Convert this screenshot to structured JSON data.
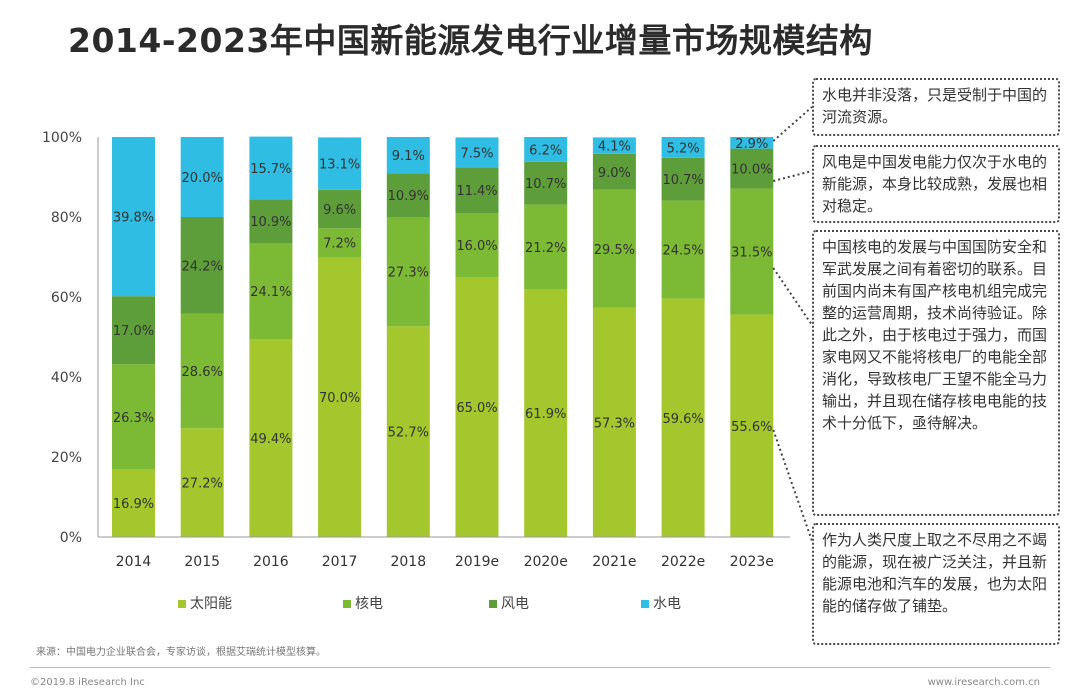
{
  "title": "2014-2023年中国新能源发电行业增量市场规模结构",
  "chart_data": {
    "type": "bar",
    "stacked": true,
    "percent": true,
    "categories": [
      "2014",
      "2015",
      "2016",
      "2017",
      "2018",
      "2019e",
      "2020e",
      "2021e",
      "2022e",
      "2023e"
    ],
    "series": [
      {
        "name": "太阳能",
        "color": "#a3c72d",
        "values": [
          16.9,
          27.2,
          49.4,
          70.0,
          52.7,
          65.0,
          61.9,
          57.3,
          59.6,
          55.6
        ]
      },
      {
        "name": "核电",
        "color": "#7cb935",
        "values": [
          26.3,
          28.6,
          24.1,
          7.2,
          27.3,
          16.0,
          21.2,
          29.5,
          24.5,
          31.5
        ]
      },
      {
        "name": "风电",
        "color": "#5e9e3a",
        "values": [
          17.0,
          24.2,
          10.9,
          9.6,
          10.9,
          11.4,
          10.7,
          9.0,
          10.7,
          10.0
        ]
      },
      {
        "name": "水电",
        "color": "#2fbde3",
        "values": [
          39.8,
          20.0,
          15.7,
          13.1,
          9.1,
          7.5,
          6.2,
          4.1,
          5.2,
          2.9
        ]
      }
    ],
    "y_ticks": [
      "0%",
      "20%",
      "40%",
      "60%",
      "80%",
      "100%"
    ],
    "ylim": [
      0,
      100
    ],
    "legend_position": "bottom",
    "grid": false
  },
  "notes": [
    "水电并非没落，只是受制于中国的河流资源。",
    "风电是中国发电能力仅次于水电的新能源，本身比较成熟，发展也相对稳定。",
    "中国核电的发展与中国国防安全和军武发展之间有着密切的联系。目前国内尚未有国产核电机组完成完整的运营周期，技术尚待验证。除此之外，由于核电过于强力，而国家电网又不能将核电厂的电能全部消化，导致核电厂王望不能全马力输出，并且现在储存核电电能的技术十分低下，亟待解决。",
    "作为人类尺度上取之不尽用之不竭的能源，现在被广泛关注，并且新能源电池和汽车的发展，也为太阳能的储存做了铺垫。"
  ],
  "source": "来源：中国电力企业联合会，专家访谈，根据艾瑞统计模型核算。",
  "footer_left": "©2019.8 iResearch Inc",
  "footer_right": "www.iresearch.com.cn"
}
